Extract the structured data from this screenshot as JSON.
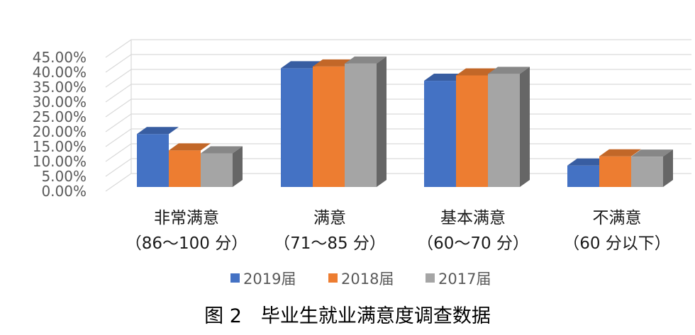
{
  "chart_data": {
    "type": "bar",
    "categories": [
      [
        "非常满意",
        "（86～100 分）"
      ],
      [
        "满意",
        "（71～85 分）"
      ],
      [
        "基本满意",
        "（60～70 分）"
      ],
      [
        "不满意",
        "（60 分以下）"
      ]
    ],
    "series": [
      {
        "name": "2019届",
        "color": "#4472C4",
        "values": [
          17.8,
          39.9,
          35.7,
          7.2
        ]
      },
      {
        "name": "2018届",
        "color": "#ED7D31",
        "values": [
          12.3,
          40.5,
          37.5,
          10.3
        ]
      },
      {
        "name": "2017届",
        "color": "#A5A5A5",
        "values": [
          11.3,
          41.5,
          38.0,
          10.2
        ]
      }
    ],
    "yticks": [
      "0.00%",
      "5.00%",
      "10.00%",
      "15.00%",
      "20.00%",
      "25.00%",
      "30.00%",
      "35.00%",
      "40.00%",
      "45.00%"
    ],
    "ylim": [
      0,
      45
    ],
    "grid": true,
    "three_d": true,
    "legend_position": "bottom"
  },
  "caption": "图 2　毕业生就业满意度调查数据"
}
